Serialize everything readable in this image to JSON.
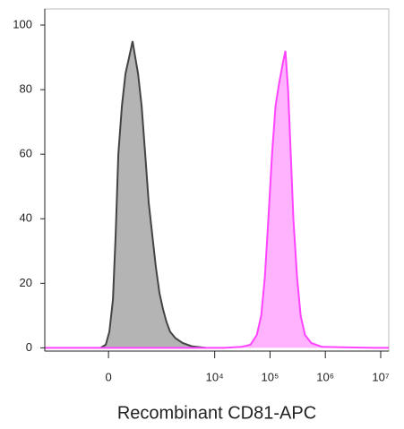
{
  "chart_data": {
    "type": "histogram-overlay",
    "x_label": "Recombinant CD81-APC",
    "xscale": "asinh",
    "xscale_cofactor": 241,
    "xlim": [
      -1700,
      14000000
    ],
    "xticks": [
      0,
      {
        "value": 10000,
        "label": "10⁴"
      },
      {
        "value": 100000,
        "label": "10⁵"
      },
      {
        "value": 1000000,
        "label": "10⁶"
      },
      {
        "value": 10000000,
        "label": "10⁷"
      }
    ],
    "ylim": [
      -1,
      105
    ],
    "yticks": [
      0,
      20,
      40,
      60,
      80,
      100
    ],
    "series": [
      {
        "color": "#444444",
        "fill": "#b4b4b4",
        "x": [
          -82,
          -27,
          9,
          45,
          73,
          101,
          142,
          185,
          232,
          284,
          328,
          376,
          448,
          528,
          620,
          725,
          848,
          988,
          1152,
          1337,
          1557,
          1952,
          2627,
          3832,
          6917
        ],
        "values": [
          0,
          1,
          5,
          15,
          35,
          60,
          75,
          85,
          90,
          95,
          90,
          85,
          75,
          60,
          45,
          35,
          25,
          17,
          12,
          8,
          5,
          3,
          1.5,
          0.5,
          0
        ]
      },
      {
        "color": "#ff44ff",
        "fill": "#ffb3ff",
        "x": [
          -1700,
          14580,
          30650,
          44460,
          57720,
          69410,
          80610,
          93510,
          108600,
          125900,
          146000,
          169500,
          189500,
          211800,
          236900,
          264700,
          307400,
          356700,
          429500,
          557100,
          870000,
          8110000,
          14000000
        ],
        "values": [
          0,
          0,
          0.3,
          1,
          4,
          10,
          22,
          40,
          60,
          75,
          82,
          88,
          92,
          80,
          60,
          40,
          22,
          10,
          4,
          1.5,
          0.3,
          0,
          0
        ]
      }
    ]
  }
}
